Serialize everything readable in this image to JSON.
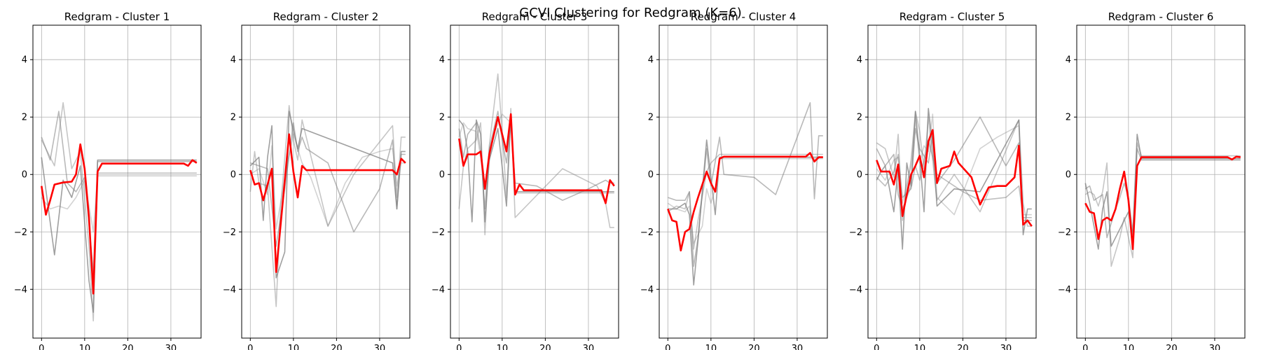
{
  "figure": {
    "suptitle": "GCVI Clustering for Redgram (K=6)",
    "xlim": [
      -2,
      37
    ],
    "ylim": [
      -5.7,
      5.2
    ],
    "xticks": [
      0,
      10,
      20,
      30
    ],
    "yticks": [
      -4,
      -2,
      0,
      2,
      4
    ],
    "grid": true,
    "member_color": "#808080",
    "centroid_color": "#ff0000"
  },
  "chart_data": [
    {
      "type": "line",
      "title": "Redgram - Cluster 1",
      "xlabel": "",
      "ylabel": "",
      "centroid": {
        "x": [
          0,
          1,
          2,
          3,
          5,
          7,
          8,
          9,
          10,
          11,
          12,
          13,
          14,
          20,
          25,
          30,
          31,
          32,
          33,
          34,
          35,
          36
        ],
        "y": [
          -0.4,
          -1.4,
          -0.9,
          -0.35,
          -0.28,
          -0.25,
          0.0,
          1.05,
          0.2,
          -1.5,
          -4.15,
          0.1,
          0.38,
          0.38,
          0.38,
          0.38,
          0.38,
          0.38,
          0.38,
          0.3,
          0.5,
          0.4
        ]
      },
      "members": [
        {
          "x": [
            0,
            3,
            5,
            7,
            9,
            11,
            12,
            13,
            36
          ],
          "y": [
            0.6,
            -2.8,
            -0.2,
            -0.8,
            0.3,
            -3.7,
            -4.8,
            0.5,
            0.5
          ]
        },
        {
          "x": [
            0,
            3,
            5,
            7,
            9,
            11,
            12,
            13,
            36
          ],
          "y": [
            1.2,
            0.3,
            2.5,
            0.2,
            0.8,
            -2.5,
            -5.1,
            0.05,
            0.05
          ]
        },
        {
          "x": [
            0,
            2,
            4,
            6,
            8,
            10,
            12,
            13,
            36
          ],
          "y": [
            1.3,
            0.5,
            2.2,
            -0.3,
            -0.6,
            -0.1,
            -3.4,
            0.45,
            0.45
          ]
        },
        {
          "x": [
            0,
            2,
            4,
            6,
            8,
            10,
            12,
            13,
            36
          ],
          "y": [
            -0.8,
            -1.2,
            -1.1,
            -1.2,
            -0.8,
            -0.2,
            -2.0,
            -0.05,
            -0.05
          ]
        }
      ]
    },
    {
      "type": "line",
      "title": "Redgram - Cluster 2",
      "xlabel": "",
      "ylabel": "",
      "centroid": {
        "x": [
          0,
          1,
          2,
          3,
          5,
          6,
          7,
          9,
          10,
          11,
          12,
          13,
          20,
          25,
          30,
          33,
          34,
          35,
          36
        ],
        "y": [
          0.15,
          -0.35,
          -0.3,
          -0.9,
          0.2,
          -3.4,
          -1.8,
          1.4,
          0.1,
          -0.8,
          0.3,
          0.15,
          0.15,
          0.15,
          0.15,
          0.15,
          0.0,
          0.55,
          0.4
        ]
      },
      "members": [
        {
          "x": [
            0,
            2,
            3,
            4,
            5,
            6,
            8,
            9,
            11,
            12,
            33,
            34,
            35,
            36
          ],
          "y": [
            0.3,
            0.6,
            -1.6,
            0.6,
            1.7,
            -3.6,
            -2.7,
            2.2,
            0.9,
            1.6,
            0.4,
            -1.2,
            0.8,
            0.8
          ]
        },
        {
          "x": [
            0,
            1,
            2,
            4,
            6,
            7,
            9,
            10,
            11,
            12,
            18,
            24,
            33,
            34,
            35,
            36
          ],
          "y": [
            -0.6,
            0.8,
            -0.3,
            -0.4,
            -4.6,
            -1.2,
            2.4,
            1.2,
            0.5,
            1.9,
            -1.8,
            0.0,
            1.7,
            -0.8,
            1.3,
            1.3
          ]
        },
        {
          "x": [
            0,
            2,
            4,
            6,
            8,
            10,
            11,
            12,
            13,
            18,
            24,
            30,
            33,
            34,
            35,
            36
          ],
          "y": [
            0.4,
            0.3,
            0.2,
            -2.5,
            -0.5,
            1.8,
            0.8,
            1.3,
            0.9,
            0.4,
            -2.0,
            -0.5,
            1.2,
            -1.2,
            0.7,
            0.7
          ]
        },
        {
          "x": [
            0,
            2,
            4,
            5,
            6,
            8,
            10,
            12,
            14,
            18,
            22,
            26,
            30,
            33,
            34,
            35,
            36
          ],
          "y": [
            0.0,
            0.2,
            -0.7,
            1.0,
            -1.9,
            -0.1,
            1.4,
            0.4,
            -0.1,
            -1.8,
            -0.3,
            0.6,
            0.8,
            0.9,
            -0.4,
            0.4,
            0.4
          ]
        }
      ]
    },
    {
      "type": "line",
      "title": "Redgram - Cluster 3",
      "xlabel": "",
      "ylabel": "",
      "centroid": {
        "x": [
          0,
          1,
          2,
          4,
          5,
          6,
          7,
          9,
          11,
          12,
          13,
          14,
          15,
          20,
          25,
          30,
          33,
          34,
          35,
          36
        ],
        "y": [
          1.25,
          0.3,
          0.7,
          0.7,
          0.8,
          -0.5,
          0.7,
          2.0,
          0.8,
          2.1,
          -0.7,
          -0.35,
          -0.55,
          -0.55,
          -0.55,
          -0.55,
          -0.55,
          -1.0,
          -0.2,
          -0.4
        ]
      },
      "members": [
        {
          "x": [
            0,
            1,
            2,
            3,
            4,
            5,
            6,
            7,
            9,
            11,
            12,
            13,
            14,
            36
          ],
          "y": [
            1.9,
            1.7,
            0.8,
            -1.65,
            1.9,
            1.4,
            -1.65,
            0.5,
            1.6,
            -1.1,
            2.0,
            -0.6,
            -0.6,
            -0.6
          ]
        },
        {
          "x": [
            0,
            1,
            2,
            4,
            5,
            6,
            7,
            9,
            10,
            11,
            12,
            13,
            24,
            32,
            34,
            35,
            36
          ],
          "y": [
            -1.2,
            0.3,
            0.9,
            1.2,
            1.8,
            -2.1,
            1.0,
            3.5,
            1.5,
            -0.8,
            2.3,
            -1.5,
            0.2,
            -0.4,
            -1.0,
            -1.85,
            -1.85
          ]
        },
        {
          "x": [
            0,
            1,
            2,
            4,
            5,
            6,
            7,
            9,
            10,
            11,
            12,
            13,
            18,
            24,
            30,
            34,
            35,
            36
          ],
          "y": [
            1.6,
            0.6,
            1.4,
            1.8,
            0.8,
            -1.2,
            0.9,
            2.2,
            1.2,
            0.4,
            1.9,
            -0.3,
            -0.4,
            -0.9,
            -0.5,
            -0.2,
            -0.3,
            -0.3
          ]
        },
        {
          "x": [
            0,
            1,
            2,
            4,
            5,
            6,
            8,
            10,
            12,
            13,
            36
          ],
          "y": [
            1.3,
            1.8,
            1.6,
            1.5,
            0.6,
            -0.5,
            1.4,
            2.1,
            1.8,
            -0.65,
            -0.65
          ]
        }
      ]
    },
    {
      "type": "line",
      "title": "Redgram - Cluster 4",
      "xlabel": "",
      "ylabel": "",
      "centroid": {
        "x": [
          0,
          1,
          2,
          3,
          4,
          5,
          6,
          7,
          9,
          10,
          11,
          12,
          13,
          20,
          25,
          30,
          32,
          33,
          34,
          35,
          36
        ],
        "y": [
          -1.2,
          -1.6,
          -1.65,
          -2.65,
          -2.0,
          -1.9,
          -1.3,
          -0.8,
          0.1,
          -0.3,
          -0.6,
          0.55,
          0.62,
          0.62,
          0.62,
          0.62,
          0.62,
          0.75,
          0.45,
          0.6,
          0.6
        ]
      },
      "members": [
        {
          "x": [
            0,
            2,
            4,
            5,
            6,
            7,
            9,
            11,
            12,
            36
          ],
          "y": [
            -1.2,
            -1.2,
            -1.0,
            -1.4,
            -3.85,
            -2.3,
            1.2,
            -1.4,
            0.6,
            0.6
          ]
        },
        {
          "x": [
            0,
            2,
            4,
            5,
            6,
            7,
            9,
            10,
            12,
            13,
            36
          ],
          "y": [
            -1.3,
            -1.1,
            -1.2,
            -0.6,
            -2.6,
            -1.6,
            0.1,
            0.4,
            0.7,
            0.7,
            0.7
          ]
        },
        {
          "x": [
            0,
            2,
            4,
            5,
            6,
            7,
            9,
            10,
            12,
            13,
            20,
            25,
            33,
            34,
            35,
            36
          ],
          "y": [
            -0.8,
            -0.9,
            -0.9,
            -0.6,
            -3.2,
            -2.2,
            0.9,
            -0.4,
            1.3,
            0.0,
            -0.1,
            -0.7,
            2.5,
            -0.85,
            1.35,
            1.35
          ]
        },
        {
          "x": [
            0,
            2,
            4,
            5,
            6,
            8,
            9,
            10,
            11,
            12,
            36
          ],
          "y": [
            -1.0,
            -1.2,
            -1.3,
            -1.1,
            -2.4,
            -1.8,
            -0.5,
            -1.0,
            -0.5,
            0.55,
            0.55
          ]
        }
      ]
    },
    {
      "type": "line",
      "title": "Redgram - Cluster 5",
      "xlabel": "",
      "ylabel": "",
      "centroid": {
        "x": [
          0,
          1,
          2,
          3,
          4,
          5,
          6,
          7,
          8,
          9,
          10,
          11,
          12,
          13,
          14,
          15,
          17,
          18,
          19,
          22,
          24,
          26,
          28,
          30,
          32,
          33,
          34,
          35,
          36
        ],
        "y": [
          0.5,
          0.1,
          0.1,
          0.1,
          -0.35,
          0.35,
          -1.45,
          -0.7,
          0.0,
          0.3,
          0.65,
          -0.1,
          1.15,
          1.55,
          -0.3,
          0.2,
          0.3,
          0.8,
          0.4,
          -0.1,
          -1.05,
          -0.45,
          -0.4,
          -0.4,
          -0.1,
          1.0,
          -1.75,
          -1.6,
          -1.8
        ]
      },
      "members": [
        {
          "x": [
            0,
            1,
            2,
            4,
            5,
            6,
            7,
            8,
            9,
            10,
            11,
            12,
            13,
            14,
            18,
            24,
            33,
            34,
            35,
            36
          ],
          "y": [
            -0.2,
            0.1,
            0.3,
            -1.3,
            0.2,
            -2.6,
            0.4,
            -0.4,
            2.2,
            0.6,
            -1.3,
            2.3,
            1.0,
            -1.1,
            -0.5,
            -0.6,
            1.9,
            -2.1,
            -1.2,
            -1.2
          ]
        },
        {
          "x": [
            0,
            2,
            4,
            5,
            6,
            8,
            9,
            10,
            11,
            12,
            13,
            14,
            18,
            24,
            33,
            34,
            35,
            36
          ],
          "y": [
            1.1,
            0.9,
            -0.1,
            1.4,
            -1.6,
            0.5,
            2.2,
            1.5,
            0.2,
            2.0,
            0.5,
            -0.9,
            0.0,
            -1.3,
            1.9,
            -1.0,
            -1.8,
            -1.8
          ]
        },
        {
          "x": [
            0,
            2,
            4,
            5,
            6,
            8,
            9,
            10,
            12,
            13,
            14,
            18,
            24,
            30,
            33,
            34,
            36
          ],
          "y": [
            0.9,
            0.3,
            0.7,
            -0.7,
            -1.2,
            -0.4,
            1.6,
            0.9,
            0.4,
            1.4,
            -0.3,
            0.5,
            2.0,
            0.3,
            1.1,
            -1.6,
            -1.6
          ]
        },
        {
          "x": [
            0,
            2,
            4,
            5,
            6,
            8,
            9,
            10,
            11,
            12,
            13,
            14,
            18,
            24,
            28,
            33,
            34,
            36
          ],
          "y": [
            0.2,
            -0.2,
            0.5,
            0.6,
            -1.0,
            0.3,
            1.9,
            0.4,
            1.0,
            0.8,
            2.1,
            -0.8,
            -1.4,
            0.9,
            1.3,
            1.7,
            -1.4,
            -1.4
          ]
        },
        {
          "x": [
            0,
            2,
            4,
            5,
            6,
            8,
            9,
            10,
            12,
            13,
            14,
            20,
            24,
            30,
            33,
            34,
            36
          ],
          "y": [
            -0.1,
            -0.4,
            0.1,
            0.7,
            -0.8,
            -0.5,
            0.3,
            -0.2,
            1.2,
            0.6,
            0.0,
            -0.6,
            -0.9,
            -0.8,
            -0.4,
            -1.5,
            -1.5
          ]
        }
      ]
    },
    {
      "type": "line",
      "title": "Redgram - Cluster 6",
      "xlabel": "",
      "ylabel": "",
      "centroid": {
        "x": [
          0,
          1,
          2,
          3,
          4,
          5,
          6,
          7,
          8,
          9,
          10,
          11,
          12,
          13,
          20,
          25,
          30,
          33,
          34,
          35,
          36
        ],
        "y": [
          -1.0,
          -1.3,
          -1.35,
          -2.25,
          -1.6,
          -1.5,
          -1.6,
          -1.2,
          -0.5,
          0.1,
          -0.9,
          -2.6,
          0.3,
          0.6,
          0.6,
          0.6,
          0.6,
          0.6,
          0.52,
          0.62,
          0.6
        ]
      },
      "members": [
        {
          "x": [
            0,
            1,
            2,
            3,
            4,
            5,
            6,
            8,
            10,
            11,
            12,
            13,
            36
          ],
          "y": [
            -0.3,
            -1.0,
            -1.8,
            -2.6,
            -1.2,
            -0.6,
            -2.5,
            -1.9,
            -1.3,
            -2.1,
            1.4,
            0.55,
            0.55
          ]
        },
        {
          "x": [
            0,
            1,
            2,
            3,
            4,
            5,
            6,
            8,
            9,
            11,
            12,
            13,
            36
          ],
          "y": [
            -0.7,
            -0.6,
            -0.7,
            -1.1,
            -0.6,
            0.4,
            -3.2,
            -2.2,
            -1.5,
            -2.9,
            1.1,
            0.65,
            0.65
          ]
        },
        {
          "x": [
            0,
            1,
            2,
            4,
            5,
            6,
            7,
            8,
            9,
            10,
            11,
            12,
            13,
            36
          ],
          "y": [
            -0.5,
            -0.4,
            -0.9,
            -0.7,
            -2.2,
            -1.7,
            -1.2,
            -0.8,
            -0.3,
            -0.8,
            -2.0,
            0.9,
            0.5,
            0.5
          ]
        }
      ]
    }
  ]
}
